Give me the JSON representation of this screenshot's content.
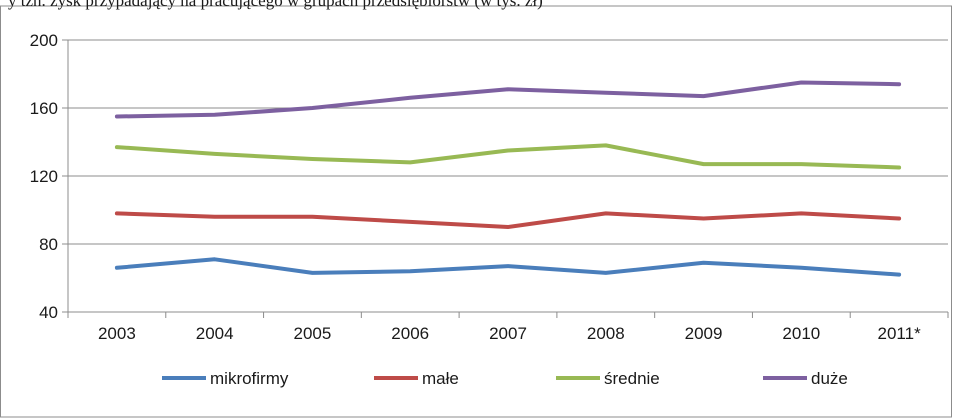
{
  "caption": "y tzn. zysk przypadający na pracującego w grupach przedsiębiorstw (w tys. zł)",
  "chart_data": {
    "type": "line",
    "title": "",
    "xlabel": "",
    "ylabel": "",
    "categories": [
      "2003",
      "2004",
      "2005",
      "2006",
      "2007",
      "2008",
      "2009",
      "2010",
      "2011*"
    ],
    "ylim": [
      40,
      200
    ],
    "yticks": [
      40,
      80,
      120,
      160,
      200
    ],
    "grid": true,
    "legend_position": "bottom",
    "series": [
      {
        "name": "mikrofirmy",
        "color": "#4a7ebb",
        "values": [
          66,
          71,
          63,
          64,
          67,
          63,
          69,
          66,
          62
        ]
      },
      {
        "name": "małe",
        "color": "#be4b48",
        "values": [
          98,
          96,
          96,
          93,
          90,
          98,
          95,
          98,
          95
        ]
      },
      {
        "name": "średnie",
        "color": "#98b954",
        "values": [
          137,
          133,
          130,
          128,
          135,
          138,
          127,
          127,
          125
        ]
      },
      {
        "name": "duże",
        "color": "#7d60a0",
        "values": [
          155,
          156,
          160,
          166,
          171,
          169,
          167,
          175,
          174
        ]
      }
    ]
  }
}
